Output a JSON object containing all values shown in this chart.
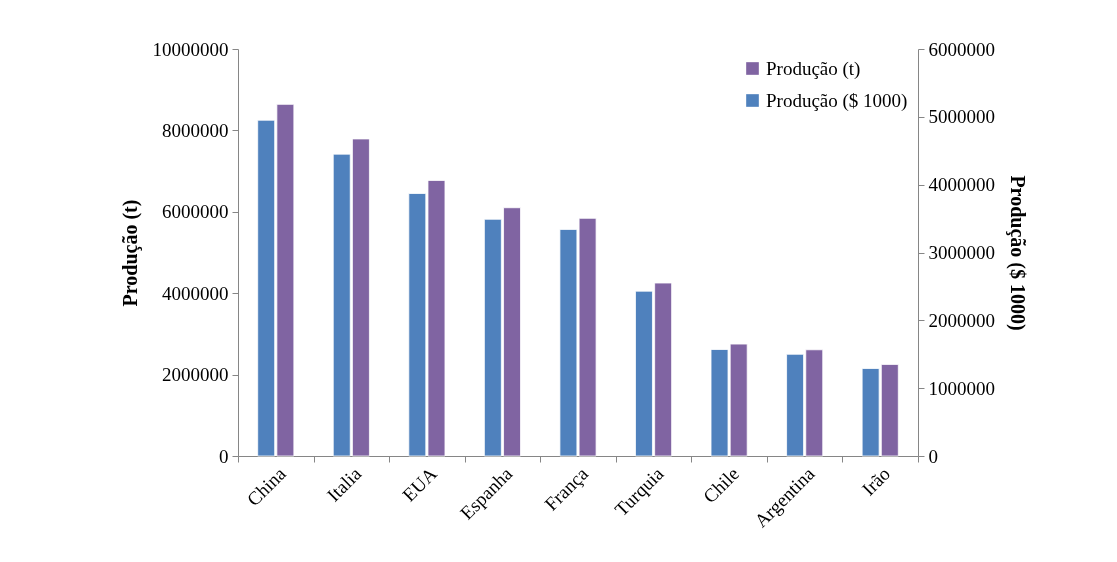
{
  "chart_data": {
    "type": "bar",
    "categories": [
      "China",
      "Italia",
      "EUA",
      "Espanha",
      "França",
      "Turquia",
      "Chile",
      "Argentina",
      "Irão"
    ],
    "series": [
      {
        "name": "Produção (t)",
        "color": "#8064a2",
        "values": [
          8640000,
          7790000,
          6770000,
          6100000,
          5840000,
          4250000,
          2750000,
          2610000,
          2250000
        ]
      },
      {
        "name": "Produção ($ 1000)",
        "color": "#4f81bd",
        "axis": "y2",
        "values": [
          4950000,
          4450000,
          3870000,
          3490000,
          3340000,
          2430000,
          1570000,
          1500000,
          1290000
        ]
      }
    ],
    "ylabel": "Produção (t)",
    "y2label": "Produção ($ 1000)",
    "ylim": [
      0,
      10000000
    ],
    "yticks": [
      0,
      2000000,
      4000000,
      6000000,
      8000000,
      10000000
    ],
    "y2lim": [
      0,
      6000000
    ],
    "y2ticks": [
      0,
      1000000,
      2000000,
      3000000,
      4000000,
      5000000,
      6000000
    ],
    "grid": false,
    "legend": "top right"
  }
}
